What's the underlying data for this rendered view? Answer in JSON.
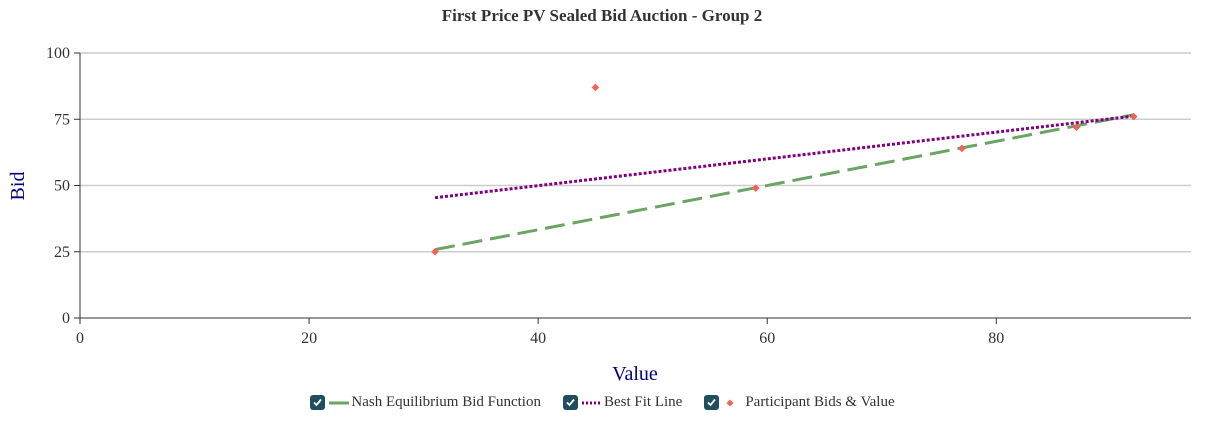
{
  "chart_data": {
    "type": "scatter",
    "title": "First Price PV Sealed Bid Auction - Group 2",
    "xlabel": "Value",
    "ylabel": "Bid",
    "xlim": [
      0,
      97
    ],
    "ylim": [
      0,
      100
    ],
    "x_ticks": [
      "0",
      "20",
      "40",
      "60",
      "80"
    ],
    "y_ticks": [
      "0",
      "25",
      "50",
      "75",
      "100"
    ],
    "grid": "horizontal",
    "series": [
      {
        "name": "Nash Equilibrium Bid Function",
        "kind": "line",
        "style": "dashed",
        "color": "#6aa564",
        "x": [
          31,
          92
        ],
        "y": [
          25.8,
          76.7
        ]
      },
      {
        "name": "Best Fit Line",
        "kind": "line",
        "style": "dotted",
        "color": "#800080",
        "x": [
          31,
          92
        ],
        "y": [
          45.4,
          76.2
        ]
      },
      {
        "name": "Participant Bids & Value",
        "kind": "scatter",
        "marker": "diamond",
        "color": "#f0625c",
        "x": [
          31,
          45,
          59,
          77,
          87,
          92
        ],
        "y": [
          25,
          87,
          49,
          64,
          72,
          76
        ]
      }
    ]
  },
  "legend": {
    "items": [
      {
        "label": "Nash Equilibrium Bid Function"
      },
      {
        "label": "Best Fit Line"
      },
      {
        "label": "Participant Bids & Value"
      }
    ],
    "checkbox_color": "#1f4e5f"
  }
}
